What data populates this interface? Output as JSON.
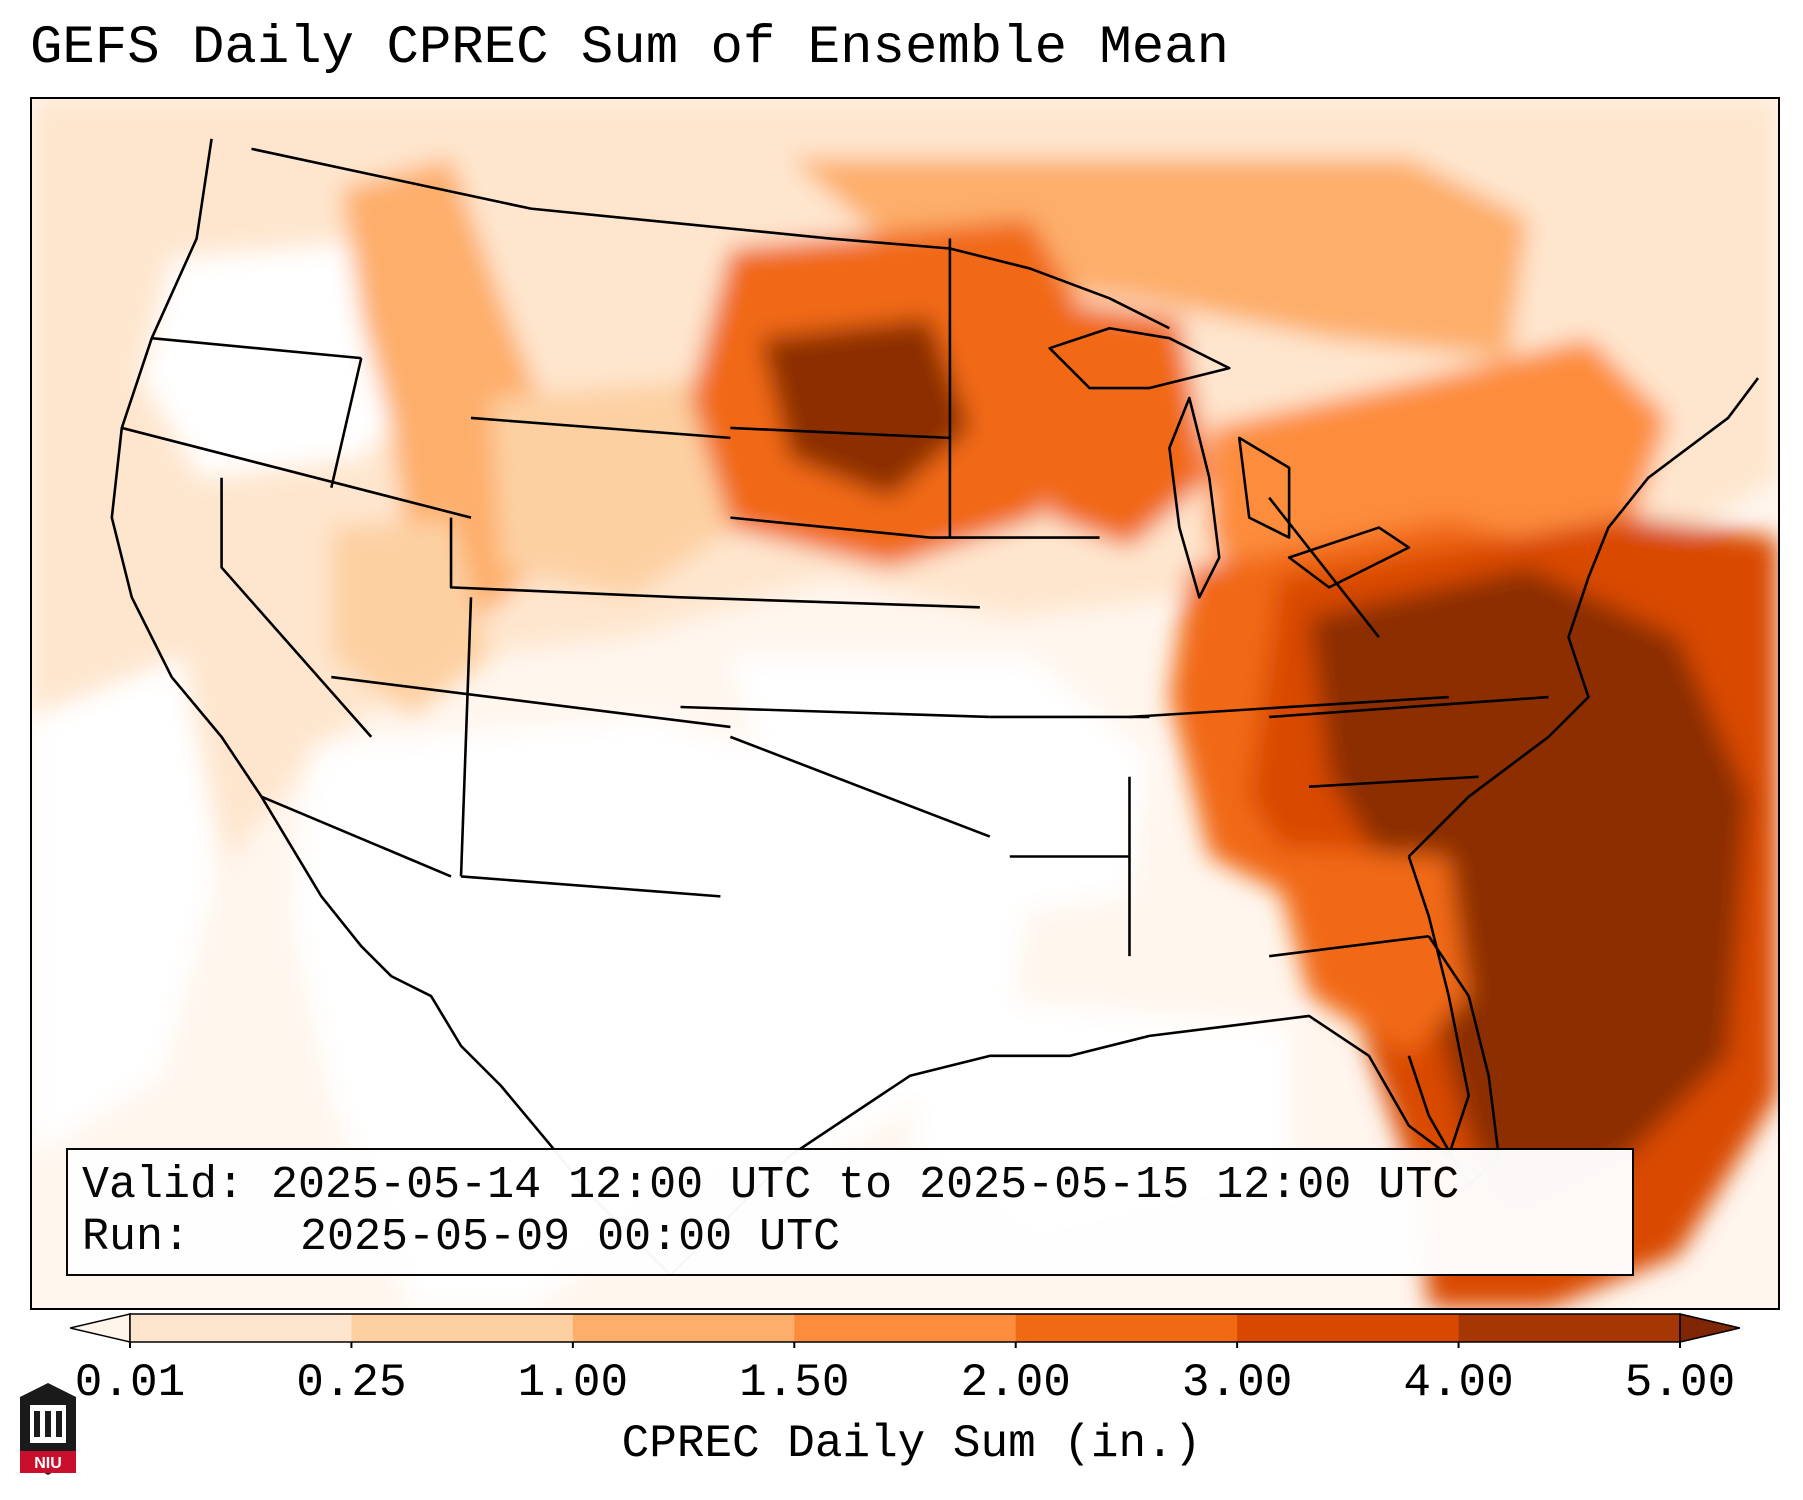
{
  "title": "GEFS Daily CPREC Sum of Ensemble Mean",
  "info": {
    "valid_label": "Valid:",
    "valid_value": "2025-05-14 12:00 UTC to 2025-05-15 12:00 UTC",
    "run_label": "Run:",
    "run_value": "2025-05-09 00:00 UTC"
  },
  "colorbar": {
    "label": "CPREC Daily Sum (in.)",
    "ticks": [
      "0.01",
      "0.25",
      "1.00",
      "1.50",
      "2.00",
      "3.00",
      "4.00",
      "5.00"
    ],
    "colors": [
      "#fff5eb",
      "#fee6ce",
      "#fdd0a2",
      "#fdae6b",
      "#fd8d3c",
      "#f16913",
      "#d94801",
      "#a63603",
      "#7f2704"
    ],
    "extend": "both"
  },
  "logo": {
    "name": "university-logo",
    "text": "NIU"
  },
  "colors": {
    "heavy": "#8c2d04",
    "high": "#d94801",
    "medium": "#f16913",
    "light": "#fd8d3c",
    "pale": "#fdd0a2",
    "faint": "#fee6ce",
    "base": "#fff5eb"
  }
}
